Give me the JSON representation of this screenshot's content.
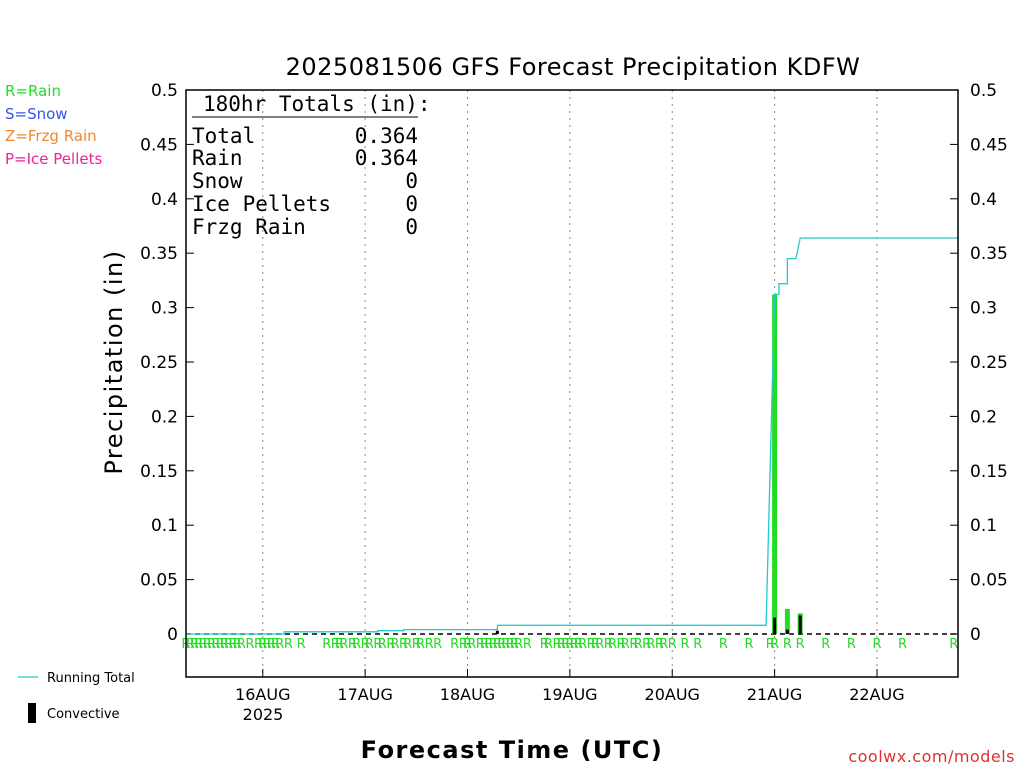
{
  "chart_data": {
    "type": "bar",
    "title": "2025081506 GFS Forecast Precipitation KDFW",
    "ylabel": "Precipitation (in)",
    "xlabel": "Forecast Time (UTC)",
    "ylim": [
      0,
      0.5
    ],
    "yticks": [
      "0",
      "0.05",
      "0.1",
      "0.15",
      "0.2",
      "0.25",
      "0.3",
      "0.35",
      "0.4",
      "0.45",
      "0.5"
    ],
    "xlim_hours": [
      0,
      181
    ],
    "xticks": [
      {
        "label": "16AUG",
        "hours": 18
      },
      {
        "label": "17AUG",
        "hours": 42
      },
      {
        "label": "18AUG",
        "hours": 66
      },
      {
        "label": "19AUG",
        "hours": 90
      },
      {
        "label": "20AUG",
        "hours": 114
      },
      {
        "label": "21AUG",
        "hours": 138
      },
      {
        "label": "22AUG",
        "hours": 162
      }
    ],
    "year_label": "2025",
    "grid": true,
    "series": [
      {
        "name": "Running Total",
        "color": "#22cccc",
        "kind": "line",
        "points": [
          [
            0,
            0
          ],
          [
            23,
            0
          ],
          [
            23,
            0.002
          ],
          [
            45,
            0.002
          ],
          [
            45,
            0.003
          ],
          [
            51,
            0.003
          ],
          [
            51,
            0.004
          ],
          [
            73,
            0.004
          ],
          [
            73,
            0.008
          ],
          [
            136,
            0.008
          ],
          [
            138,
            0.312
          ],
          [
            139,
            0.312
          ],
          [
            139,
            0.322
          ],
          [
            141,
            0.322
          ],
          [
            141,
            0.345
          ],
          [
            143,
            0.345
          ],
          [
            144,
            0.364
          ],
          [
            181,
            0.364
          ]
        ]
      },
      {
        "name": "Rain",
        "color": "#22dd22",
        "kind": "bar",
        "points": [
          [
            138,
            0.312
          ],
          [
            141,
            0.023
          ],
          [
            144,
            0.019
          ]
        ]
      },
      {
        "name": "Convective",
        "color": "#000000",
        "kind": "bar",
        "points": [
          [
            73,
            0.003
          ],
          [
            138,
            0.015
          ],
          [
            141,
            0.004
          ],
          [
            144,
            0.017
          ]
        ]
      }
    ],
    "r_markers_hours": [
      0,
      1,
      2,
      3,
      4,
      5,
      6,
      7,
      8,
      9,
      10,
      11,
      12,
      13,
      15,
      17,
      18,
      19,
      20,
      21,
      22,
      24,
      27,
      33,
      35,
      36,
      37,
      39,
      40,
      42,
      43,
      45,
      46,
      48,
      49,
      51,
      52,
      54,
      55,
      57,
      59,
      63,
      65,
      66,
      67,
      69,
      70,
      71,
      72,
      73,
      74,
      75,
      76,
      77,
      78,
      80,
      84,
      85,
      87,
      88,
      89,
      90,
      91,
      92,
      93,
      95,
      96,
      97,
      99,
      100,
      102,
      103,
      105,
      106,
      108,
      109,
      111,
      112,
      114,
      117,
      120,
      126,
      132,
      137,
      138,
      141,
      144,
      150,
      156,
      162,
      168,
      180
    ],
    "totals_box": {
      "header": "180hr Totals (in):",
      "rows": [
        {
          "label": "Total",
          "value": "0.364"
        },
        {
          "label": "Rain",
          "value": "0.364"
        },
        {
          "label": "Snow",
          "value": "0"
        },
        {
          "label": "Ice Pellets",
          "value": "0"
        },
        {
          "label": "Frzg Rain",
          "value": "0"
        }
      ]
    },
    "type_legend": [
      {
        "text": "R=Rain",
        "color": "#22dd22"
      },
      {
        "text": "S=Snow",
        "color": "#3355ee"
      },
      {
        "text": "Z=Frzg Rain",
        "color": "#ee8833"
      },
      {
        "text": "P=Ice Pellets",
        "color": "#ee2299"
      }
    ],
    "legend": {
      "running_total_label": "Running Total",
      "convective_label": "Convective"
    },
    "credit": "coolwx.com/models"
  }
}
